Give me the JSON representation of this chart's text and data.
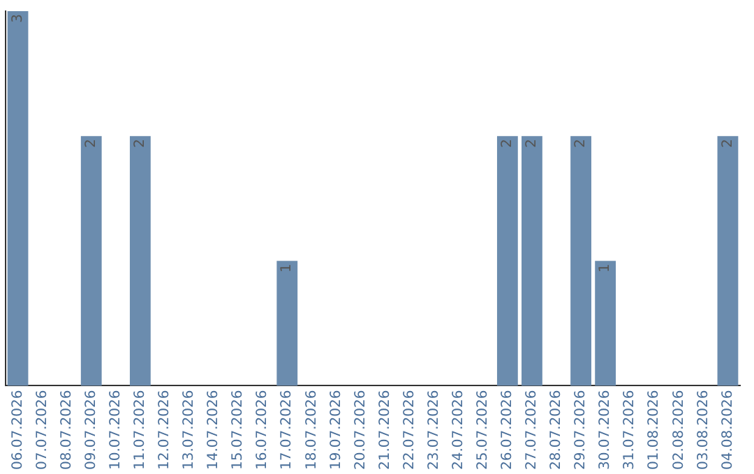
{
  "chart_data": {
    "type": "bar",
    "categories": [
      "06.07.2026",
      "07.07.2026",
      "08.07.2026",
      "09.07.2026",
      "10.07.2026",
      "11.07.2026",
      "12.07.2026",
      "13.07.2026",
      "14.07.2026",
      "15.07.2026",
      "16.07.2026",
      "17.07.2026",
      "18.07.2026",
      "19.07.2026",
      "20.07.2026",
      "21.07.2026",
      "22.07.2026",
      "23.07.2026",
      "24.07.2026",
      "25.07.2026",
      "26.07.2026",
      "27.07.2026",
      "28.07.2026",
      "29.07.2026",
      "30.07.2026",
      "31.07.2026",
      "01.08.2026",
      "02.08.2026",
      "03.08.2026",
      "04.08.2026"
    ],
    "values": [
      3,
      null,
      null,
      2,
      null,
      2,
      null,
      null,
      null,
      null,
      null,
      1,
      null,
      null,
      null,
      null,
      null,
      null,
      null,
      null,
      2,
      2,
      null,
      2,
      1,
      null,
      null,
      null,
      null,
      2
    ],
    "color": "#6b8cae",
    "data_labels": true,
    "grid": false,
    "legend": false
  }
}
